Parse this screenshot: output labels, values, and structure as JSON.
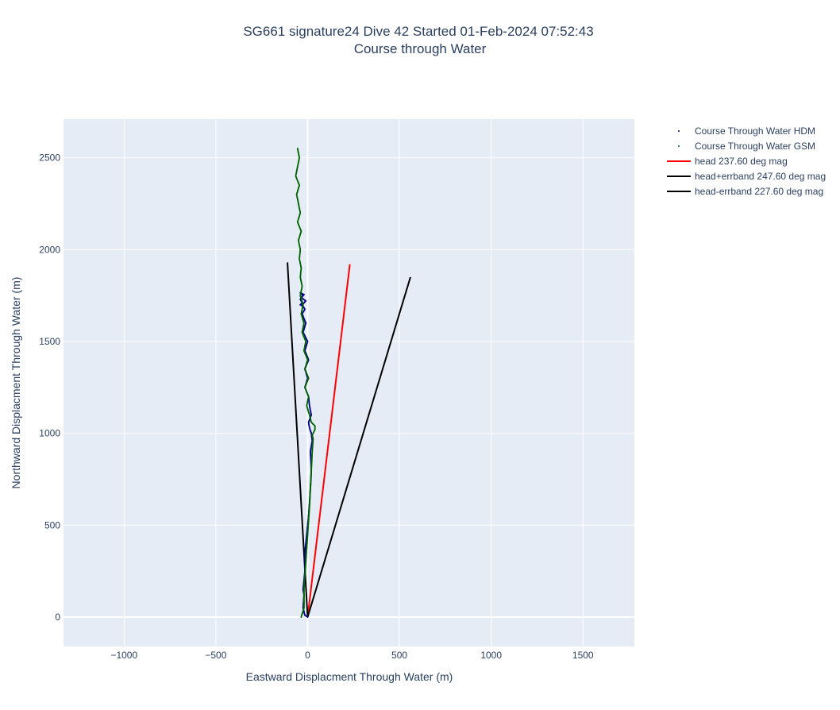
{
  "chart_data": {
    "type": "line",
    "title": "SG661 signature24 Dive 42 Started 01-Feb-2024 07:52:43",
    "subtitle": "Course through Water",
    "xlabel": "Eastward Displacment Through Water (m)",
    "ylabel": "Northward Displacment Through Water (m)",
    "xlim": [
      -1330,
      1780
    ],
    "ylim": [
      -160,
      2710
    ],
    "xticks": [
      -1000,
      -500,
      0,
      500,
      1000,
      1500
    ],
    "yticks": [
      0,
      500,
      1000,
      1500,
      2000,
      2500
    ],
    "xtick_labels": [
      "−1000",
      "−500",
      "0",
      "500",
      "1000",
      "1500"
    ],
    "ytick_labels": [
      "0",
      "500",
      "1000",
      "1500",
      "2000",
      "2500"
    ],
    "grid": true,
    "legend_position": "right",
    "series": [
      {
        "name": "Course Through Water HDM",
        "kind": "dots",
        "color": "#00008b",
        "x": [
          0,
          -15,
          -25,
          -20,
          -25,
          -15,
          -15,
          -5,
          5,
          12,
          15,
          18,
          20,
          18,
          15,
          20,
          25,
          20,
          10,
          5,
          20,
          10,
          5,
          -15,
          0,
          -15,
          5,
          -15,
          0,
          -25,
          -10,
          -30,
          -15,
          -30,
          -10,
          -35,
          -20,
          -40,
          -25,
          -40,
          -30,
          -40,
          -25
        ],
        "y": [
          0,
          10,
          50,
          120,
          150,
          250,
          350,
          450,
          550,
          650,
          700,
          750,
          800,
          850,
          900,
          930,
          960,
          1000,
          1030,
          1060,
          1100,
          1150,
          1200,
          1250,
          1300,
          1350,
          1400,
          1450,
          1500,
          1550,
          1600,
          1650,
          1675,
          1700,
          1720,
          1740,
          1755,
          1765,
          1750,
          1730,
          1710,
          1700,
          1690
        ]
      },
      {
        "name": "Course Through Water GSM",
        "kind": "dots",
        "color": "#006400",
        "x": [
          -35,
          -20,
          -20,
          -10,
          0,
          10,
          15,
          20,
          25,
          30,
          25,
          40,
          40,
          20,
          10,
          -5,
          5,
          -15,
          5,
          -15,
          0,
          -20,
          -10,
          -30,
          -20,
          -35,
          -25,
          -40,
          -30,
          -40,
          -35,
          -45,
          -40,
          -50,
          -35,
          -55,
          -40,
          -60,
          -45,
          -65,
          -45,
          -55
        ],
        "y": [
          0,
          50,
          150,
          300,
          450,
          600,
          700,
          800,
          900,
          970,
          990,
          1020,
          1040,
          1060,
          1100,
          1150,
          1200,
          1250,
          1300,
          1350,
          1400,
          1450,
          1500,
          1550,
          1600,
          1650,
          1700,
          1750,
          1800,
          1850,
          1900,
          1950,
          2000,
          2050,
          2100,
          2150,
          2200,
          2300,
          2350,
          2400,
          2500,
          2550
        ]
      },
      {
        "name": "head 237.60 deg mag",
        "kind": "line",
        "color": "#ff0000",
        "x": [
          0,
          230
        ],
        "y": [
          0,
          1920
        ]
      },
      {
        "name": "head+errband 247.60 deg mag",
        "kind": "line",
        "color": "#000000",
        "x": [
          0,
          560
        ],
        "y": [
          0,
          1850
        ]
      },
      {
        "name": "head-errband 227.60 deg mag",
        "kind": "line",
        "color": "#000000",
        "x": [
          0,
          -110
        ],
        "y": [
          0,
          1930
        ]
      }
    ]
  },
  "colors": {
    "plot_bg": "#e5ecf6",
    "grid": "#ffffff",
    "text": "#2a3f5f"
  }
}
